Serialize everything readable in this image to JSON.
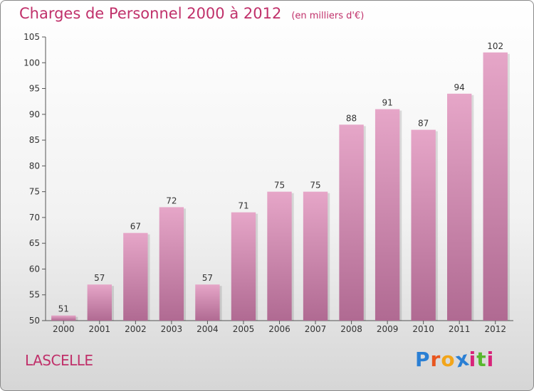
{
  "title": "Charges de Personnel 2000 à 2012",
  "unit": "(en milliers d'€)",
  "place": "LASCELLE",
  "logo": {
    "letters": [
      "P",
      "r",
      "o",
      "x",
      "i",
      "t",
      "i"
    ],
    "colors": [
      "#2a7fd4",
      "#e8561f",
      "#f2a51a",
      "#2a7fd4",
      "#d8247a",
      "#58b82e",
      "#d8247a"
    ]
  },
  "chart_data": {
    "type": "bar",
    "categories": [
      "2000",
      "2001",
      "2002",
      "2003",
      "2004",
      "2005",
      "2006",
      "2007",
      "2008",
      "2009",
      "2010",
      "2011",
      "2012"
    ],
    "values": [
      51,
      57,
      67,
      72,
      57,
      71,
      75,
      75,
      88,
      91,
      87,
      94,
      102
    ],
    "ylim": [
      50,
      105
    ],
    "yticks": [
      50,
      55,
      60,
      65,
      70,
      75,
      80,
      85,
      90,
      95,
      100,
      105
    ],
    "bar_color": "#d98bb3",
    "grid": false,
    "xlabel": "",
    "ylabel": ""
  }
}
